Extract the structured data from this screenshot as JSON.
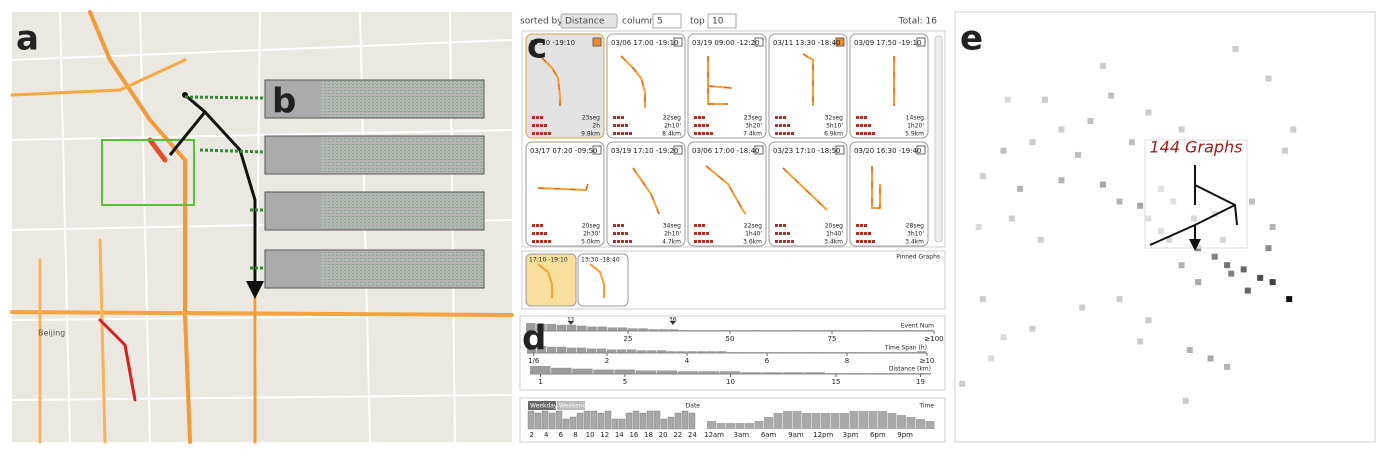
{
  "labels": {
    "a": "a",
    "b": "b",
    "c": "c",
    "d": "d",
    "e": "e"
  },
  "map": {
    "places": [
      "Beijing"
    ]
  },
  "controls": {
    "sorted_by": "sorted by",
    "sort_field": "Distance",
    "column_label": "column",
    "column": "5",
    "top_label": "top",
    "top": "10",
    "total": "Total: 16"
  },
  "cards": [
    {
      "date": "17:10 -19:10",
      "segs": "23seg",
      "span": "2h",
      "dist": "9.8km",
      "pinned": true
    },
    {
      "date": "03/06 17:00 -19:10",
      "segs": "22seg",
      "span": "2h10'",
      "dist": "8.4km",
      "pinned": false
    },
    {
      "date": "03/19 09:00 -12:20",
      "segs": "23seg",
      "span": "3h20'",
      "dist": "7.4km",
      "pinned": false
    },
    {
      "date": "03/11 13:30 -18:40",
      "segs": "32seg",
      "span": "5h10'",
      "dist": "6.9km",
      "pinned": true
    },
    {
      "date": "03/09 17:50 -19:10",
      "segs": "14seg",
      "span": "1h20'",
      "dist": "5.9km",
      "pinned": false
    },
    {
      "date": "03/17 07:20 -09:50",
      "segs": "20seg",
      "span": "2h30'",
      "dist": "5.0km",
      "pinned": false
    },
    {
      "date": "03/19 17:10 -19:20",
      "segs": "34seg",
      "span": "2h10'",
      "dist": "4.7km",
      "pinned": false
    },
    {
      "date": "03/06 17:00 -18:40",
      "segs": "22seg",
      "span": "1h40'",
      "dist": "3.6km",
      "pinned": false
    },
    {
      "date": "03/23 17:10 -18:50",
      "segs": "20seg",
      "span": "1h40'",
      "dist": "3.4km",
      "pinned": false
    },
    {
      "date": "03/20 16:30 -19:40",
      "segs": "28seg",
      "span": "3h10'",
      "dist": "3.4km",
      "pinned": false
    }
  ],
  "pinned": {
    "title": "Pinned Graphs",
    "items": [
      "17:10 -19:10",
      "13:30 -18:40"
    ]
  },
  "filters": {
    "event_num": {
      "title": "Event Num",
      "xlim": [
        0,
        100
      ],
      "ticks": [
        25,
        50,
        75,
        {
          "value": 100,
          "label": "≥100"
        }
      ],
      "markers": [
        11,
        36
      ],
      "counts": [
        9,
        8,
        8,
        7,
        7,
        6,
        5,
        5,
        4,
        4,
        3,
        3,
        2,
        2,
        2,
        1,
        1,
        1,
        1,
        1,
        1,
        1,
        1,
        1,
        1,
        1,
        1,
        1,
        1,
        1,
        1,
        1,
        1,
        1,
        1,
        1,
        1,
        1,
        1,
        1
      ]
    },
    "time_span": {
      "title": "Time Span (h)",
      "xlim": [
        0,
        10
      ],
      "ticks": [
        {
          "value": 0.1667,
          "label": "1/6"
        },
        2,
        4,
        6,
        8,
        {
          "value": 10,
          "label": "≥10"
        }
      ],
      "counts": [
        9,
        8,
        7,
        7,
        6,
        6,
        5,
        5,
        4,
        4,
        4,
        3,
        3,
        3,
        2,
        2,
        2,
        2,
        2,
        2,
        1,
        1,
        1,
        1,
        1,
        1,
        1,
        1,
        1,
        1,
        1,
        1,
        1,
        1,
        1,
        1,
        1,
        1,
        1,
        2
      ]
    },
    "distance": {
      "title": "Distance (km)",
      "xlim": [
        0.5,
        19.5
      ],
      "ticks": [
        1,
        5,
        10,
        15,
        19
      ],
      "counts": [
        9,
        7,
        6,
        5,
        5,
        4,
        4,
        3,
        3,
        3,
        2,
        2,
        2,
        2,
        1,
        1,
        1,
        1,
        1
      ]
    }
  },
  "date": {
    "title": "Date",
    "weekday": "Weekday",
    "weekend": "Weekend",
    "xlim": [
      1.5,
      24.5
    ],
    "ticks": [
      2,
      4,
      6,
      8,
      10,
      12,
      14,
      16,
      18,
      20,
      22,
      24
    ],
    "counts": [
      9,
      8,
      9,
      8,
      9,
      5,
      6,
      8,
      9,
      9,
      8,
      9,
      5,
      5,
      8,
      9,
      8,
      9,
      9,
      5,
      6,
      8,
      9,
      8
    ]
  },
  "time": {
    "title": "Time",
    "ticks": [
      "12am",
      "3am",
      "6am",
      "9am",
      "12pm",
      "3pm",
      "6pm",
      "9pm"
    ],
    "counts": [
      4,
      3,
      3,
      3,
      3,
      4,
      6,
      8,
      9,
      9,
      8,
      8,
      8,
      8,
      8,
      9,
      9,
      9,
      9,
      8,
      7,
      6,
      5,
      4
    ]
  },
  "scatter": {
    "title": "144 Graphs",
    "xlim": [
      0,
      100
    ],
    "ylim": [
      0,
      100
    ],
    "points": [
      [
        67,
        8,
        0.2
      ],
      [
        75,
        15,
        0.2
      ],
      [
        35,
        12,
        0.2
      ],
      [
        37,
        19,
        0.25
      ],
      [
        46,
        23,
        0.2
      ],
      [
        32,
        25,
        0.25
      ],
      [
        25,
        27,
        0.2
      ],
      [
        18,
        30,
        0.2
      ],
      [
        11,
        32,
        0.25
      ],
      [
        6,
        38,
        0.2
      ],
      [
        15,
        41,
        0.3
      ],
      [
        25,
        39,
        0.3
      ],
      [
        35,
        40,
        0.35
      ],
      [
        39,
        44,
        0.3
      ],
      [
        44,
        45,
        0.35
      ],
      [
        46,
        48,
        0.3
      ],
      [
        51,
        53,
        0.4
      ],
      [
        58,
        55,
        0.45
      ],
      [
        62,
        57,
        0.5
      ],
      [
        65,
        59,
        0.55
      ],
      [
        69,
        60,
        0.6
      ],
      [
        73,
        62,
        0.7
      ],
      [
        76,
        63,
        0.75
      ],
      [
        80,
        67,
        0.95
      ],
      [
        70,
        65,
        0.6
      ],
      [
        66,
        61,
        0.5
      ],
      [
        75,
        55,
        0.45
      ],
      [
        76,
        50,
        0.3
      ],
      [
        71,
        44,
        0.25
      ],
      [
        79,
        32,
        0.2
      ],
      [
        81,
        27,
        0.2
      ],
      [
        54,
        27,
        0.2
      ],
      [
        42,
        30,
        0.25
      ],
      [
        13,
        48,
        0.2
      ],
      [
        5,
        50,
        0.15
      ],
      [
        20,
        53,
        0.2
      ],
      [
        6,
        67,
        0.2
      ],
      [
        11,
        76,
        0.15
      ],
      [
        18,
        74,
        0.2
      ],
      [
        30,
        69,
        0.2
      ],
      [
        39,
        67,
        0.2
      ],
      [
        46,
        72,
        0.2
      ],
      [
        56,
        79,
        0.3
      ],
      [
        61,
        81,
        0.35
      ],
      [
        65,
        83,
        0.3
      ],
      [
        44,
        77,
        0.2
      ],
      [
        8,
        81,
        0.15
      ],
      [
        55,
        91,
        0.2
      ],
      [
        1,
        87,
        0.2
      ],
      [
        12,
        20,
        0.15
      ],
      [
        21,
        20,
        0.2
      ],
      [
        29,
        33,
        0.25
      ],
      [
        52,
        44,
        0.3
      ],
      [
        62,
        47,
        0.35
      ],
      [
        57,
        48,
        0.4
      ],
      [
        49,
        41,
        0.3
      ],
      [
        58,
        63,
        0.35
      ],
      [
        54,
        59,
        0.3
      ],
      [
        49,
        51,
        0.35
      ],
      [
        64,
        53,
        0.4
      ]
    ]
  }
}
